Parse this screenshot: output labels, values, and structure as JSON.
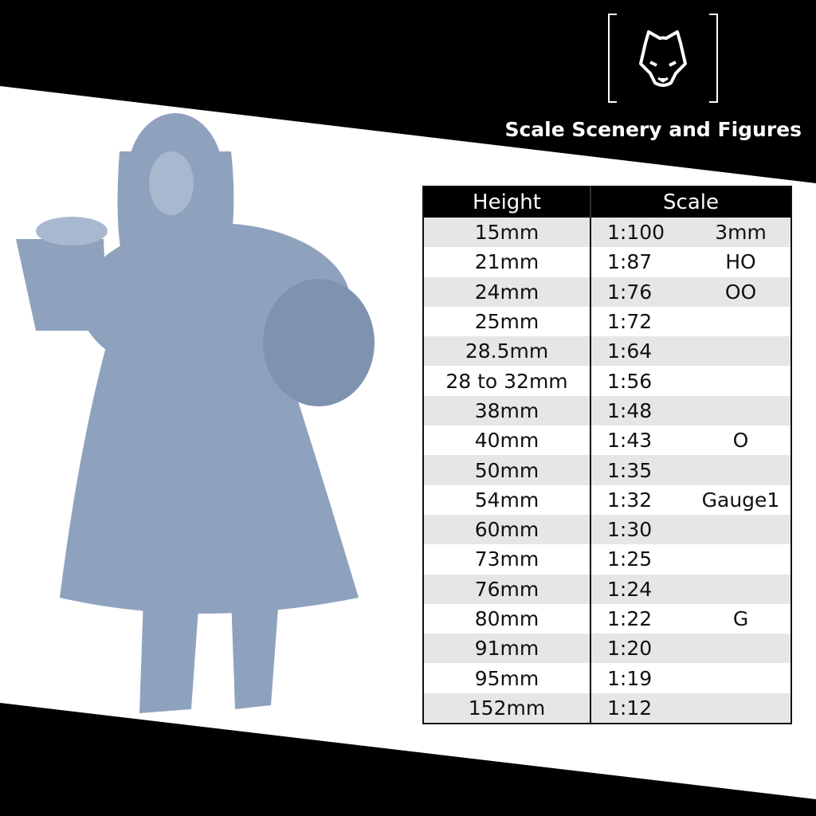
{
  "brand": {
    "name": "Scale Scenery and Figures",
    "logo_icon": "wolf-head-icon"
  },
  "colors": {
    "band": "#000000",
    "figure": "#8fa2bd",
    "row_alt": "#e6e6e6"
  },
  "table": {
    "headers": [
      "Height",
      "Scale"
    ],
    "rows": [
      {
        "height": "15mm",
        "ratio": "1:100",
        "gauge": "3mm"
      },
      {
        "height": "21mm",
        "ratio": "1:87",
        "gauge": "HO"
      },
      {
        "height": "24mm",
        "ratio": "1:76",
        "gauge": "OO"
      },
      {
        "height": "25mm",
        "ratio": "1:72",
        "gauge": ""
      },
      {
        "height": "28.5mm",
        "ratio": "1:64",
        "gauge": ""
      },
      {
        "height": "28 to 32mm",
        "ratio": "1:56",
        "gauge": ""
      },
      {
        "height": "38mm",
        "ratio": "1:48",
        "gauge": ""
      },
      {
        "height": "40mm",
        "ratio": "1:43",
        "gauge": "O"
      },
      {
        "height": "50mm",
        "ratio": "1:35",
        "gauge": ""
      },
      {
        "height": "54mm",
        "ratio": "1:32",
        "gauge": "Gauge1"
      },
      {
        "height": "60mm",
        "ratio": "1:30",
        "gauge": ""
      },
      {
        "height": "73mm",
        "ratio": "1:25",
        "gauge": ""
      },
      {
        "height": "76mm",
        "ratio": "1:24",
        "gauge": ""
      },
      {
        "height": "80mm",
        "ratio": "1:22",
        "gauge": "G"
      },
      {
        "height": "91mm",
        "ratio": "1:20",
        "gauge": ""
      },
      {
        "height": "95mm",
        "ratio": "1:19",
        "gauge": ""
      },
      {
        "height": "152mm",
        "ratio": "1:12",
        "gauge": ""
      }
    ]
  }
}
